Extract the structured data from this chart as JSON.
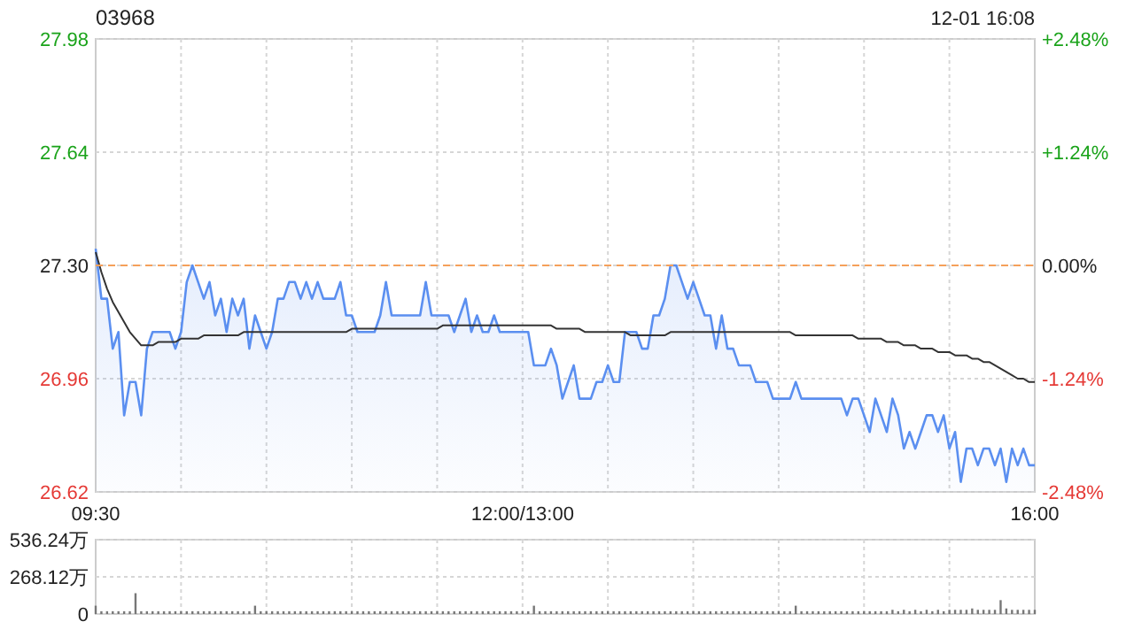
{
  "chart_data": [
    {
      "type": "area",
      "title": "03968",
      "annotations": [
        "12-01 16:08"
      ],
      "categories": [
        "09:30",
        null,
        null,
        null,
        null,
        null,
        null,
        null,
        null,
        null,
        null,
        null,
        null,
        null,
        null,
        null,
        null,
        null,
        null,
        null,
        null,
        null,
        null,
        null,
        null,
        null,
        null,
        null,
        null,
        null,
        null,
        null,
        null,
        null,
        null,
        null,
        null,
        null,
        null,
        null,
        null,
        null,
        null,
        null,
        null,
        null,
        null,
        null,
        null,
        null,
        null,
        null,
        null,
        null,
        null,
        null,
        null,
        null,
        null,
        null,
        null,
        null,
        null,
        null,
        null,
        null,
        null,
        null,
        null,
        null,
        null,
        null,
        null,
        null,
        null,
        "12:00/13:00",
        null,
        null,
        null,
        null,
        null,
        null,
        null,
        null,
        null,
        null,
        null,
        null,
        null,
        null,
        null,
        null,
        null,
        null,
        null,
        null,
        null,
        null,
        null,
        null,
        null,
        null,
        null,
        null,
        null,
        null,
        null,
        null,
        null,
        null,
        null,
        null,
        null,
        null,
        null,
        null,
        null,
        null,
        null,
        null,
        null,
        null,
        null,
        null,
        null,
        null,
        null,
        null,
        null,
        null,
        null,
        null,
        null,
        null,
        null,
        null,
        null,
        null,
        null,
        null,
        null,
        null,
        null,
        null,
        null,
        null,
        null,
        null,
        null,
        null,
        null,
        null,
        null,
        null,
        null,
        null,
        null,
        null,
        null,
        null,
        null,
        null,
        null,
        null,
        null,
        "16:00"
      ],
      "ylim": [
        26.62,
        27.98
      ],
      "yticks": [
        26.62,
        26.96,
        {
          "value": 27.3,
          "label": "27.30"
        },
        27.64,
        27.98
      ],
      "y2lim": [
        -2.48,
        2.48
      ],
      "y2ticks": [
        {
          "value": -2.48,
          "label": "-2.48%"
        },
        {
          "value": -1.24,
          "label": "-1.24%"
        },
        {
          "value": 0,
          "label": "0.00%"
        },
        {
          "value": 1.24,
          "label": "+1.24%"
        },
        {
          "value": 2.48,
          "label": "+2.48%"
        }
      ],
      "grid": true,
      "ref_lines": [
        {
          "axis": "y",
          "value": 27.3,
          "color": "#f5a05a",
          "line_style": "dashed"
        }
      ],
      "series": [
        {
          "color": "#5b8ff0",
          "values": [
            27.35,
            27.2,
            27.2,
            27.05,
            27.1,
            26.85,
            26.95,
            26.95,
            26.85,
            27.05,
            27.1,
            27.1,
            27.1,
            27.1,
            27.05,
            27.1,
            27.25,
            27.3,
            27.25,
            27.2,
            27.25,
            27.15,
            27.2,
            27.1,
            27.2,
            27.15,
            27.2,
            27.05,
            27.15,
            27.1,
            27.05,
            27.1,
            27.2,
            27.2,
            27.25,
            27.25,
            27.2,
            27.25,
            27.2,
            27.25,
            27.2,
            27.2,
            27.2,
            27.25,
            27.15,
            27.15,
            27.1,
            27.1,
            27.1,
            27.1,
            27.15,
            27.25,
            27.15,
            27.15,
            27.15,
            27.15,
            27.15,
            27.15,
            27.25,
            27.15,
            27.15,
            27.15,
            27.15,
            27.1,
            27.15,
            27.2,
            27.1,
            27.15,
            27.1,
            27.1,
            27.15,
            27.1,
            27.1,
            27.1,
            27.1,
            27.1,
            27.1,
            27.0,
            27.0,
            27.0,
            27.05,
            27.0,
            26.9,
            26.95,
            27.0,
            26.9,
            26.9,
            26.9,
            26.95,
            26.95,
            27.0,
            26.95,
            26.95,
            27.1,
            27.1,
            27.1,
            27.05,
            27.05,
            27.15,
            27.15,
            27.2,
            27.3,
            27.3,
            27.25,
            27.2,
            27.25,
            27.2,
            27.15,
            27.15,
            27.05,
            27.15,
            27.05,
            27.05,
            27.0,
            27.0,
            27.0,
            26.95,
            26.95,
            26.95,
            26.9,
            26.9,
            26.9,
            26.9,
            26.95,
            26.9,
            26.9,
            26.9,
            26.9,
            26.9,
            26.9,
            26.9,
            26.9,
            26.85,
            26.9,
            26.9,
            26.85,
            26.8,
            26.9,
            26.85,
            26.8,
            26.9,
            26.85,
            26.75,
            26.8,
            26.75,
            26.8,
            26.85,
            26.85,
            26.8,
            26.85,
            26.75,
            26.8,
            26.65,
            26.75,
            26.75,
            26.7,
            26.75,
            26.75,
            26.7,
            26.75,
            26.65,
            26.75,
            26.7,
            26.75,
            26.7,
            26.7
          ]
        },
        {
          "type": "line",
          "color": "#333333",
          "values": [
            27.34,
            27.28,
            27.23,
            27.19,
            27.16,
            27.13,
            27.1,
            27.08,
            27.06,
            27.06,
            27.06,
            27.07,
            27.07,
            27.07,
            27.07,
            27.08,
            27.08,
            27.08,
            27.08,
            27.09,
            27.09,
            27.09,
            27.09,
            27.09,
            27.09,
            27.09,
            27.1,
            27.1,
            27.1,
            27.1,
            27.1,
            27.1,
            27.1,
            27.1,
            27.1,
            27.1,
            27.1,
            27.1,
            27.1,
            27.1,
            27.1,
            27.1,
            27.1,
            27.1,
            27.1,
            27.11,
            27.11,
            27.11,
            27.11,
            27.11,
            27.11,
            27.11,
            27.11,
            27.11,
            27.11,
            27.11,
            27.11,
            27.11,
            27.11,
            27.11,
            27.11,
            27.12,
            27.12,
            27.12,
            27.12,
            27.12,
            27.12,
            27.12,
            27.12,
            27.12,
            27.12,
            27.12,
            27.12,
            27.12,
            27.12,
            27.12,
            27.12,
            27.12,
            27.12,
            27.12,
            27.12,
            27.11,
            27.11,
            27.11,
            27.11,
            27.11,
            27.1,
            27.1,
            27.1,
            27.1,
            27.1,
            27.1,
            27.1,
            27.1,
            27.09,
            27.09,
            27.09,
            27.09,
            27.09,
            27.09,
            27.09,
            27.1,
            27.1,
            27.1,
            27.1,
            27.1,
            27.1,
            27.1,
            27.1,
            27.1,
            27.1,
            27.1,
            27.1,
            27.1,
            27.1,
            27.1,
            27.1,
            27.1,
            27.1,
            27.1,
            27.1,
            27.1,
            27.1,
            27.09,
            27.09,
            27.09,
            27.09,
            27.09,
            27.09,
            27.09,
            27.09,
            27.09,
            27.09,
            27.09,
            27.08,
            27.08,
            27.08,
            27.08,
            27.08,
            27.07,
            27.07,
            27.07,
            27.06,
            27.06,
            27.06,
            27.05,
            27.05,
            27.05,
            27.04,
            27.04,
            27.04,
            27.03,
            27.03,
            27.03,
            27.02,
            27.02,
            27.01,
            27.01,
            27.0,
            26.99,
            26.98,
            26.97,
            26.96,
            26.96,
            26.95,
            26.95
          ]
        }
      ]
    },
    {
      "type": "bar",
      "tick_labels": "y",
      "grid": true,
      "categories": [
        null,
        null,
        null,
        null,
        null,
        null,
        null,
        null,
        null,
        null,
        null,
        null,
        null,
        null,
        null,
        null,
        null,
        null,
        null,
        null,
        null,
        null,
        null,
        null,
        null,
        null,
        null,
        null,
        null,
        null,
        null,
        null,
        null,
        null,
        null,
        null,
        null,
        null,
        null,
        null,
        null,
        null,
        null,
        null,
        null,
        null,
        null,
        null,
        null,
        null,
        null,
        null,
        null,
        null,
        null,
        null,
        null,
        null,
        null,
        null,
        null,
        null,
        null,
        null,
        null,
        null,
        null,
        null,
        null,
        null,
        null,
        null,
        null,
        null,
        null,
        null,
        null,
        null,
        null,
        null,
        null,
        null,
        null,
        null,
        null,
        null,
        null,
        null,
        null,
        null,
        null,
        null,
        null,
        null,
        null,
        null,
        null,
        null,
        null,
        null,
        null,
        null,
        null,
        null,
        null,
        null,
        null,
        null,
        null,
        null,
        null,
        null,
        null,
        null,
        null,
        null,
        null,
        null,
        null,
        null,
        null,
        null,
        null,
        null,
        null,
        null,
        null,
        null,
        null,
        null,
        null,
        null,
        null,
        null,
        null,
        null,
        null,
        null,
        null,
        null,
        null,
        null,
        null,
        null,
        null,
        null,
        null,
        null,
        null,
        null,
        null,
        null,
        null,
        null,
        null,
        null,
        null,
        null,
        null,
        null,
        null,
        null,
        null,
        null,
        null,
        null
      ],
      "ylim": [
        0,
        536.24
      ],
      "yticks": [
        0,
        {
          "value": 268.12,
          "label": "268.12万"
        },
        {
          "value": 536.24,
          "label": "536.24万"
        }
      ],
      "series": [
        {
          "color": "#777777",
          "values": [
            60,
            20,
            20,
            20,
            20,
            20,
            20,
            150,
            20,
            20,
            20,
            20,
            20,
            20,
            20,
            20,
            20,
            20,
            20,
            20,
            20,
            20,
            20,
            20,
            20,
            20,
            20,
            20,
            60,
            20,
            20,
            20,
            20,
            20,
            20,
            20,
            20,
            20,
            20,
            20,
            20,
            20,
            20,
            20,
            20,
            20,
            20,
            20,
            20,
            20,
            20,
            20,
            20,
            20,
            20,
            20,
            20,
            20,
            20,
            20,
            20,
            20,
            20,
            20,
            20,
            20,
            20,
            20,
            20,
            20,
            20,
            20,
            20,
            20,
            20,
            20,
            20,
            60,
            20,
            20,
            20,
            20,
            20,
            20,
            20,
            20,
            20,
            20,
            20,
            20,
            20,
            20,
            20,
            20,
            20,
            20,
            20,
            20,
            20,
            20,
            20,
            20,
            20,
            20,
            20,
            20,
            20,
            20,
            20,
            20,
            20,
            20,
            20,
            20,
            20,
            20,
            20,
            20,
            20,
            20,
            20,
            20,
            20,
            60,
            20,
            20,
            20,
            20,
            20,
            20,
            20,
            20,
            20,
            20,
            20,
            20,
            20,
            20,
            20,
            20,
            30,
            20,
            30,
            20,
            30,
            20,
            30,
            20,
            30,
            20,
            30,
            30,
            30,
            30,
            40,
            30,
            30,
            30,
            30,
            100,
            40,
            30,
            30,
            30,
            30,
            30
          ]
        }
      ]
    }
  ]
}
